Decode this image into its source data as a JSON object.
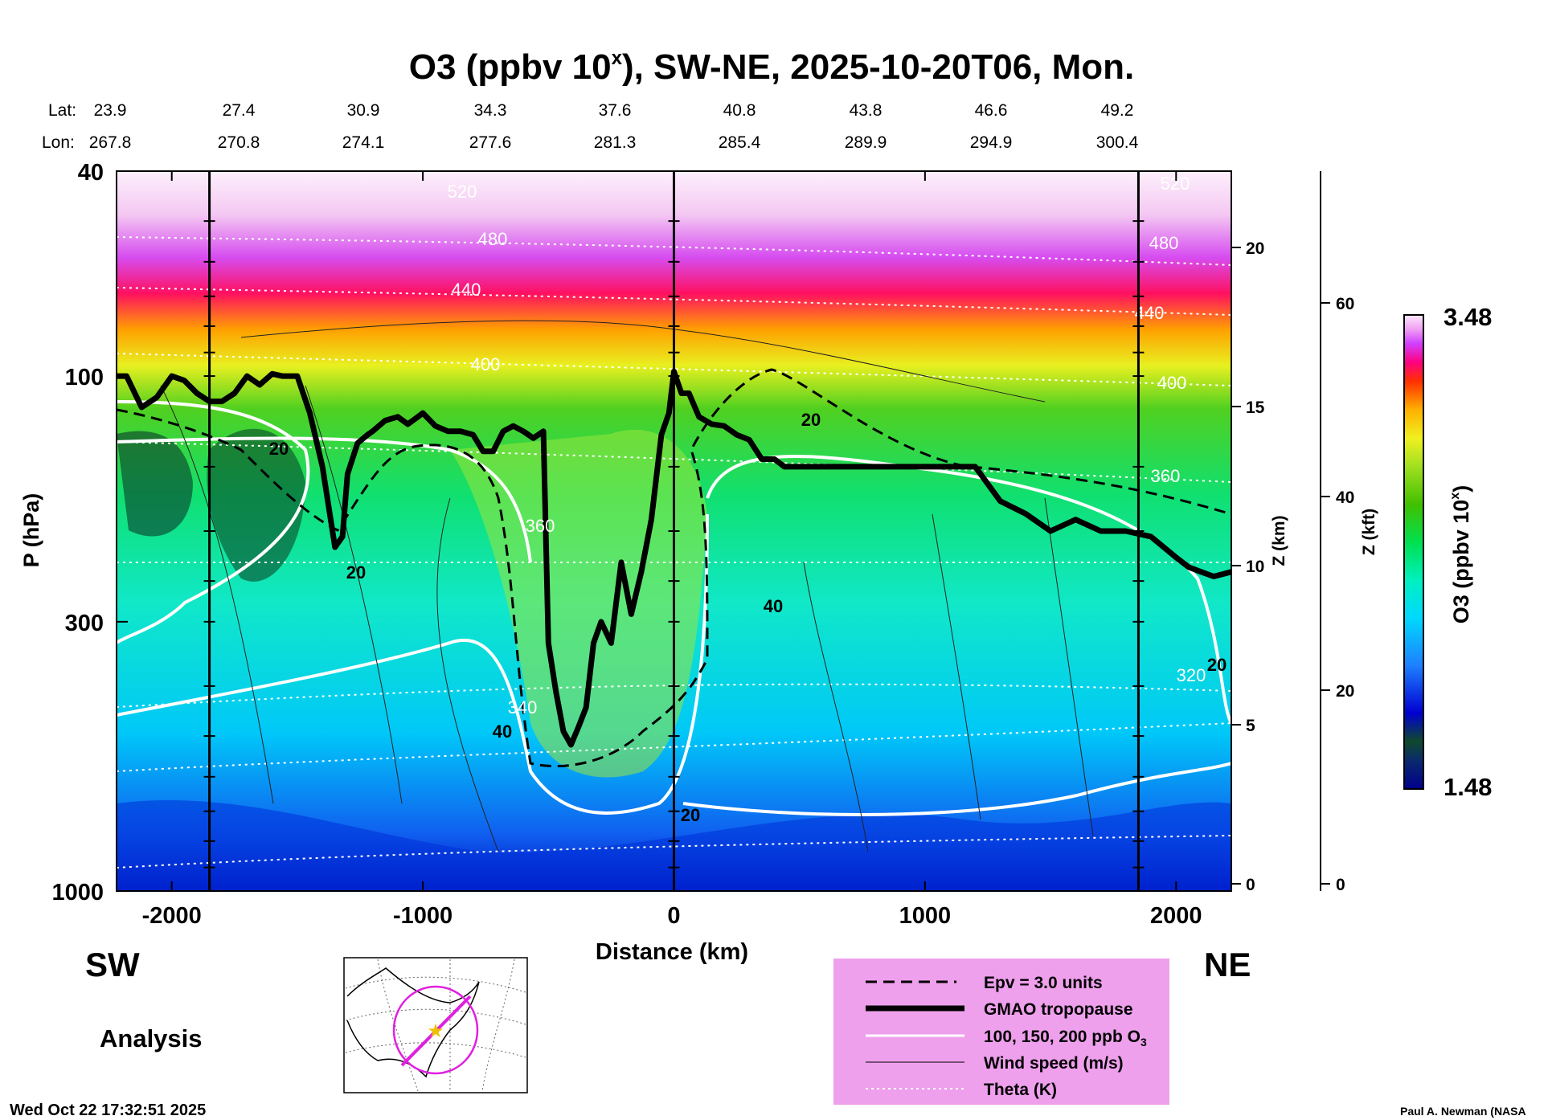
{
  "chart_data": {
    "type": "heatmap",
    "title_main": "O3 (ppbv 10",
    "title_sup": "x",
    "title_rest": "), SW-NE, 2025-10-20T06, Mon.",
    "lat_label": "Lat:",
    "lon_label": "Lon:",
    "lat_values": [
      "23.9",
      "27.4",
      "30.9",
      "34.3",
      "37.6",
      "40.8",
      "43.8",
      "46.6",
      "49.2"
    ],
    "lon_values": [
      "267.8",
      "270.8",
      "274.1",
      "277.6",
      "281.3",
      "285.4",
      "289.9",
      "294.9",
      "300.4"
    ],
    "xlabel": "Distance (km)",
    "xlim": [
      -2220,
      2220
    ],
    "x_ticks": [
      -2000,
      -1000,
      0,
      1000,
      2000
    ],
    "ylabel": "P (hPa)",
    "ylim": [
      1000,
      40
    ],
    "y_scale": "log",
    "y_ticks": [
      40,
      100,
      300,
      1000
    ],
    "z_km_label": "Z (km)",
    "z_km_ticks": [
      0,
      5,
      10,
      15,
      20
    ],
    "z_kft_label": "Z (kft)",
    "z_kft_ticks": [
      0,
      20,
      40,
      60
    ],
    "vertical_lines_km": [
      -1850,
      0,
      1850
    ],
    "colorbar_label": "O3 (ppbv 10",
    "colorbar_sup": "x",
    "colorbar_max": "3.48",
    "colorbar_min": "1.48",
    "colorbar_range": [
      1.48,
      3.48
    ],
    "theta_labels": [
      "520",
      "480",
      "440",
      "400",
      "360",
      "340",
      "320",
      "520",
      "480",
      "440",
      "400",
      "360"
    ],
    "wind_labels": [
      "20",
      "20",
      "40",
      "40",
      "20",
      "20",
      "20"
    ],
    "tropopause": {
      "x": [
        -2220,
        -2180,
        -2120,
        -2060,
        -2000,
        -1950,
        -1900,
        -1850,
        -1800,
        -1750,
        -1700,
        -1650,
        -1600,
        -1560,
        -1500,
        -1450,
        -1400,
        -1350,
        -1320,
        -1300,
        -1260,
        -1220,
        -1200,
        -1150,
        -1100,
        -1060,
        -1020,
        -1000,
        -950,
        -900,
        -850,
        -800,
        -760,
        -720,
        -680,
        -640,
        -600,
        -560,
        -520,
        -500,
        -470,
        -440,
        -410,
        -380,
        -350,
        -320,
        -290,
        -250,
        -210,
        -170,
        -130,
        -90,
        -50,
        -20,
        0,
        30,
        60,
        100,
        150,
        200,
        250,
        300,
        350,
        400,
        440,
        500,
        600,
        700,
        800,
        900,
        1000,
        1100,
        1200,
        1300,
        1400,
        1500,
        1600,
        1700,
        1800,
        1900,
        2000,
        2050,
        2100,
        2150,
        2220
      ],
      "p": [
        100,
        100,
        115,
        110,
        100,
        102,
        108,
        112,
        112,
        108,
        100,
        104,
        99,
        100,
        100,
        118,
        150,
        215,
        205,
        155,
        135,
        130,
        128,
        122,
        120,
        124,
        120,
        118,
        125,
        128,
        128,
        130,
        140,
        140,
        128,
        125,
        128,
        132,
        128,
        330,
        410,
        490,
        520,
        480,
        440,
        330,
        300,
        330,
        230,
        290,
        240,
        190,
        130,
        118,
        98,
        108,
        108,
        120,
        124,
        125,
        130,
        133,
        145,
        145,
        150,
        150,
        150,
        150,
        150,
        150,
        150,
        150,
        150,
        175,
        185,
        200,
        190,
        200,
        200,
        205,
        225,
        235,
        240,
        245,
        240
      ]
    },
    "legend": {
      "items": [
        "Epv = 3.0 units",
        "GMAO tropopause",
        "100, 150, 200 ppb O",
        "Wind speed (m/s)",
        "Theta (K)"
      ],
      "o3_sub": "3"
    },
    "sw_label": "SW",
    "ne_label": "NE",
    "analysis_label": "Analysis",
    "timestamp": "Wed Oct 22 17:32:51 2025",
    "credit": "Paul A. Newman (NASA"
  }
}
